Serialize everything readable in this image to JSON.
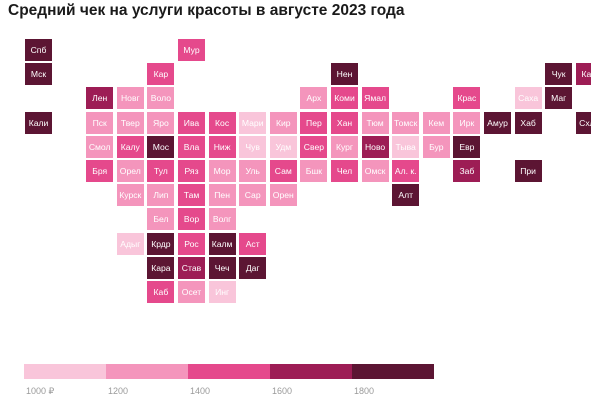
{
  "title": "Средний чек на услуги красоты в августе 2023 года",
  "colors": [
    "#f9c5da",
    "#f495bc",
    "#e5498c",
    "#9d1d55",
    "#5c1533"
  ],
  "text_colors": [
    "#ffffff",
    "#ffffff",
    "#ffffff",
    "#ffffff",
    "#ffffff"
  ],
  "legend": {
    "ticks": [
      "1000 ₽",
      "1200",
      "1400",
      "1600",
      "1800"
    ]
  },
  "regions": [
    {
      "label": "Спб",
      "col": 0,
      "row": 0,
      "level": 4
    },
    {
      "label": "Мур",
      "col": 5,
      "row": 0,
      "level": 2
    },
    {
      "label": "Мск",
      "col": 0,
      "row": 1,
      "level": 4
    },
    {
      "label": "Кар",
      "col": 4,
      "row": 1,
      "level": 2
    },
    {
      "label": "Нен",
      "col": 10,
      "row": 1,
      "level": 4
    },
    {
      "label": "Чук",
      "col": 17,
      "row": 1,
      "level": 4
    },
    {
      "label": "Кам",
      "col": 18,
      "row": 1,
      "level": 3
    },
    {
      "label": "Лен",
      "col": 2,
      "row": 2,
      "level": 3
    },
    {
      "label": "Новг",
      "col": 3,
      "row": 2,
      "level": 1
    },
    {
      "label": "Воло",
      "col": 4,
      "row": 2,
      "level": 1
    },
    {
      "label": "Арх",
      "col": 9,
      "row": 2,
      "level": 1
    },
    {
      "label": "Коми",
      "col": 10,
      "row": 2,
      "level": 2
    },
    {
      "label": "Ямал",
      "col": 11,
      "row": 2,
      "level": 2
    },
    {
      "label": "Крас",
      "col": 14,
      "row": 2,
      "level": 2
    },
    {
      "label": "Саха",
      "col": 16,
      "row": 2,
      "level": 0
    },
    {
      "label": "Маг",
      "col": 17,
      "row": 2,
      "level": 4
    },
    {
      "label": "Кали",
      "col": 0,
      "row": 3,
      "level": 4
    },
    {
      "label": "Пск",
      "col": 2,
      "row": 3,
      "level": 1
    },
    {
      "label": "Твер",
      "col": 3,
      "row": 3,
      "level": 1
    },
    {
      "label": "Яро",
      "col": 4,
      "row": 3,
      "level": 1
    },
    {
      "label": "Ива",
      "col": 5,
      "row": 3,
      "level": 2
    },
    {
      "label": "Кос",
      "col": 6,
      "row": 3,
      "level": 2
    },
    {
      "label": "Мари",
      "col": 7,
      "row": 3,
      "level": 0
    },
    {
      "label": "Кир",
      "col": 8,
      "row": 3,
      "level": 1
    },
    {
      "label": "Пер",
      "col": 9,
      "row": 3,
      "level": 2
    },
    {
      "label": "Хан",
      "col": 10,
      "row": 3,
      "level": 2
    },
    {
      "label": "Тюм",
      "col": 11,
      "row": 3,
      "level": 1
    },
    {
      "label": "Томск",
      "col": 12,
      "row": 3,
      "level": 1
    },
    {
      "label": "Кем",
      "col": 13,
      "row": 3,
      "level": 1
    },
    {
      "label": "Ирк",
      "col": 14,
      "row": 3,
      "level": 1
    },
    {
      "label": "Амур",
      "col": 15,
      "row": 3,
      "level": 4
    },
    {
      "label": "Хаб",
      "col": 16,
      "row": 3,
      "level": 4
    },
    {
      "label": "Схлн",
      "col": 18,
      "row": 3,
      "level": 4
    },
    {
      "label": "Смол",
      "col": 2,
      "row": 4,
      "level": 1
    },
    {
      "label": "Калу",
      "col": 3,
      "row": 4,
      "level": 2
    },
    {
      "label": "Мос",
      "col": 4,
      "row": 4,
      "level": 4
    },
    {
      "label": "Вла",
      "col": 5,
      "row": 4,
      "level": 2
    },
    {
      "label": "Ниж",
      "col": 6,
      "row": 4,
      "level": 2
    },
    {
      "label": "Чув",
      "col": 7,
      "row": 4,
      "level": 0
    },
    {
      "label": "Удм",
      "col": 8,
      "row": 4,
      "level": 0
    },
    {
      "label": "Свер",
      "col": 9,
      "row": 4,
      "level": 2
    },
    {
      "label": "Кург",
      "col": 10,
      "row": 4,
      "level": 1
    },
    {
      "label": "Ново",
      "col": 11,
      "row": 4,
      "level": 3
    },
    {
      "label": "Тыва",
      "col": 12,
      "row": 4,
      "level": 0
    },
    {
      "label": "Бур",
      "col": 13,
      "row": 4,
      "level": 1
    },
    {
      "label": "Евр",
      "col": 14,
      "row": 4,
      "level": 4
    },
    {
      "label": "Бря",
      "col": 2,
      "row": 5,
      "level": 2
    },
    {
      "label": "Орел",
      "col": 3,
      "row": 5,
      "level": 1
    },
    {
      "label": "Тул",
      "col": 4,
      "row": 5,
      "level": 2
    },
    {
      "label": "Ряз",
      "col": 5,
      "row": 5,
      "level": 2
    },
    {
      "label": "Мор",
      "col": 6,
      "row": 5,
      "level": 1
    },
    {
      "label": "Уль",
      "col": 7,
      "row": 5,
      "level": 1
    },
    {
      "label": "Сам",
      "col": 8,
      "row": 5,
      "level": 2
    },
    {
      "label": "Бшк",
      "col": 9,
      "row": 5,
      "level": 1
    },
    {
      "label": "Чел",
      "col": 10,
      "row": 5,
      "level": 2
    },
    {
      "label": "Омск",
      "col": 11,
      "row": 5,
      "level": 1
    },
    {
      "label": "Ал. к.",
      "col": 12,
      "row": 5,
      "level": 2
    },
    {
      "label": "Заб",
      "col": 14,
      "row": 5,
      "level": 3
    },
    {
      "label": "При",
      "col": 16,
      "row": 5,
      "level": 4
    },
    {
      "label": "Курск",
      "col": 3,
      "row": 6,
      "level": 1
    },
    {
      "label": "Лип",
      "col": 4,
      "row": 6,
      "level": 1
    },
    {
      "label": "Там",
      "col": 5,
      "row": 6,
      "level": 2
    },
    {
      "label": "Пен",
      "col": 6,
      "row": 6,
      "level": 1
    },
    {
      "label": "Сар",
      "col": 7,
      "row": 6,
      "level": 1
    },
    {
      "label": "Орен",
      "col": 8,
      "row": 6,
      "level": 1
    },
    {
      "label": "Алт",
      "col": 12,
      "row": 6,
      "level": 4
    },
    {
      "label": "Бел",
      "col": 4,
      "row": 7,
      "level": 1
    },
    {
      "label": "Вор",
      "col": 5,
      "row": 7,
      "level": 2
    },
    {
      "label": "Волг",
      "col": 6,
      "row": 7,
      "level": 1
    },
    {
      "label": "Адыг",
      "col": 3,
      "row": 8,
      "level": 0
    },
    {
      "label": "Крдр",
      "col": 4,
      "row": 8,
      "level": 4
    },
    {
      "label": "Рос",
      "col": 5,
      "row": 8,
      "level": 2
    },
    {
      "label": "Калм",
      "col": 6,
      "row": 8,
      "level": 4
    },
    {
      "label": "Аст",
      "col": 7,
      "row": 8,
      "level": 2
    },
    {
      "label": "Кара",
      "col": 4,
      "row": 9,
      "level": 4
    },
    {
      "label": "Став",
      "col": 5,
      "row": 9,
      "level": 3
    },
    {
      "label": "Чеч",
      "col": 6,
      "row": 9,
      "level": 4
    },
    {
      "label": "Даг",
      "col": 7,
      "row": 9,
      "level": 4
    },
    {
      "label": "Каб",
      "col": 4,
      "row": 10,
      "level": 2
    },
    {
      "label": "Осет",
      "col": 5,
      "row": 10,
      "level": 1
    },
    {
      "label": "Инг",
      "col": 6,
      "row": 10,
      "level": 0
    }
  ]
}
